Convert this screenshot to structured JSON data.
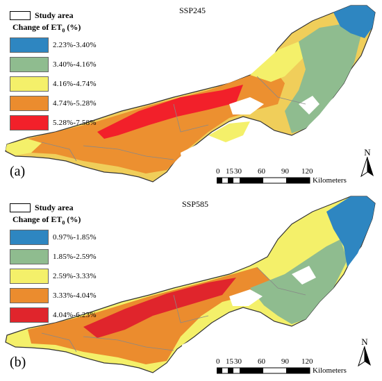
{
  "legend_common": {
    "study_area": "Study area",
    "change_prefix": "Change of ET",
    "change_sub": "0",
    "change_suffix": " (%)"
  },
  "panels": [
    {
      "label": "(a)",
      "scenario": "SSP245",
      "classes": [
        {
          "range": "2.23%-3.40%",
          "color": "#2e86c1"
        },
        {
          "range": "3.40%-4.16%",
          "color": "#8fbc8f"
        },
        {
          "range": "4.16%-4.74%",
          "color": "#f4f06a"
        },
        {
          "range": "4.74%-5.28%",
          "color": "#eb8c2e"
        },
        {
          "range": "5.28%-7.58%",
          "color": "#f2202a"
        }
      ]
    },
    {
      "label": "(b)",
      "scenario": "SSP585",
      "classes": [
        {
          "range": "0.97%-1.85%",
          "color": "#2e86c1"
        },
        {
          "range": "1.85%-2.59%",
          "color": "#8fbc8f"
        },
        {
          "range": "2.59%-3.33%",
          "color": "#f4f06a"
        },
        {
          "range": "3.33%-4.04%",
          "color": "#eb8c2e"
        },
        {
          "range": "4.04%-6.23%",
          "color": "#e0252c"
        }
      ]
    }
  ],
  "scale": {
    "ticks": [
      "0",
      "15",
      "30",
      "60",
      "90",
      "120"
    ],
    "unit": "Kilometers"
  },
  "north_label": "N"
}
